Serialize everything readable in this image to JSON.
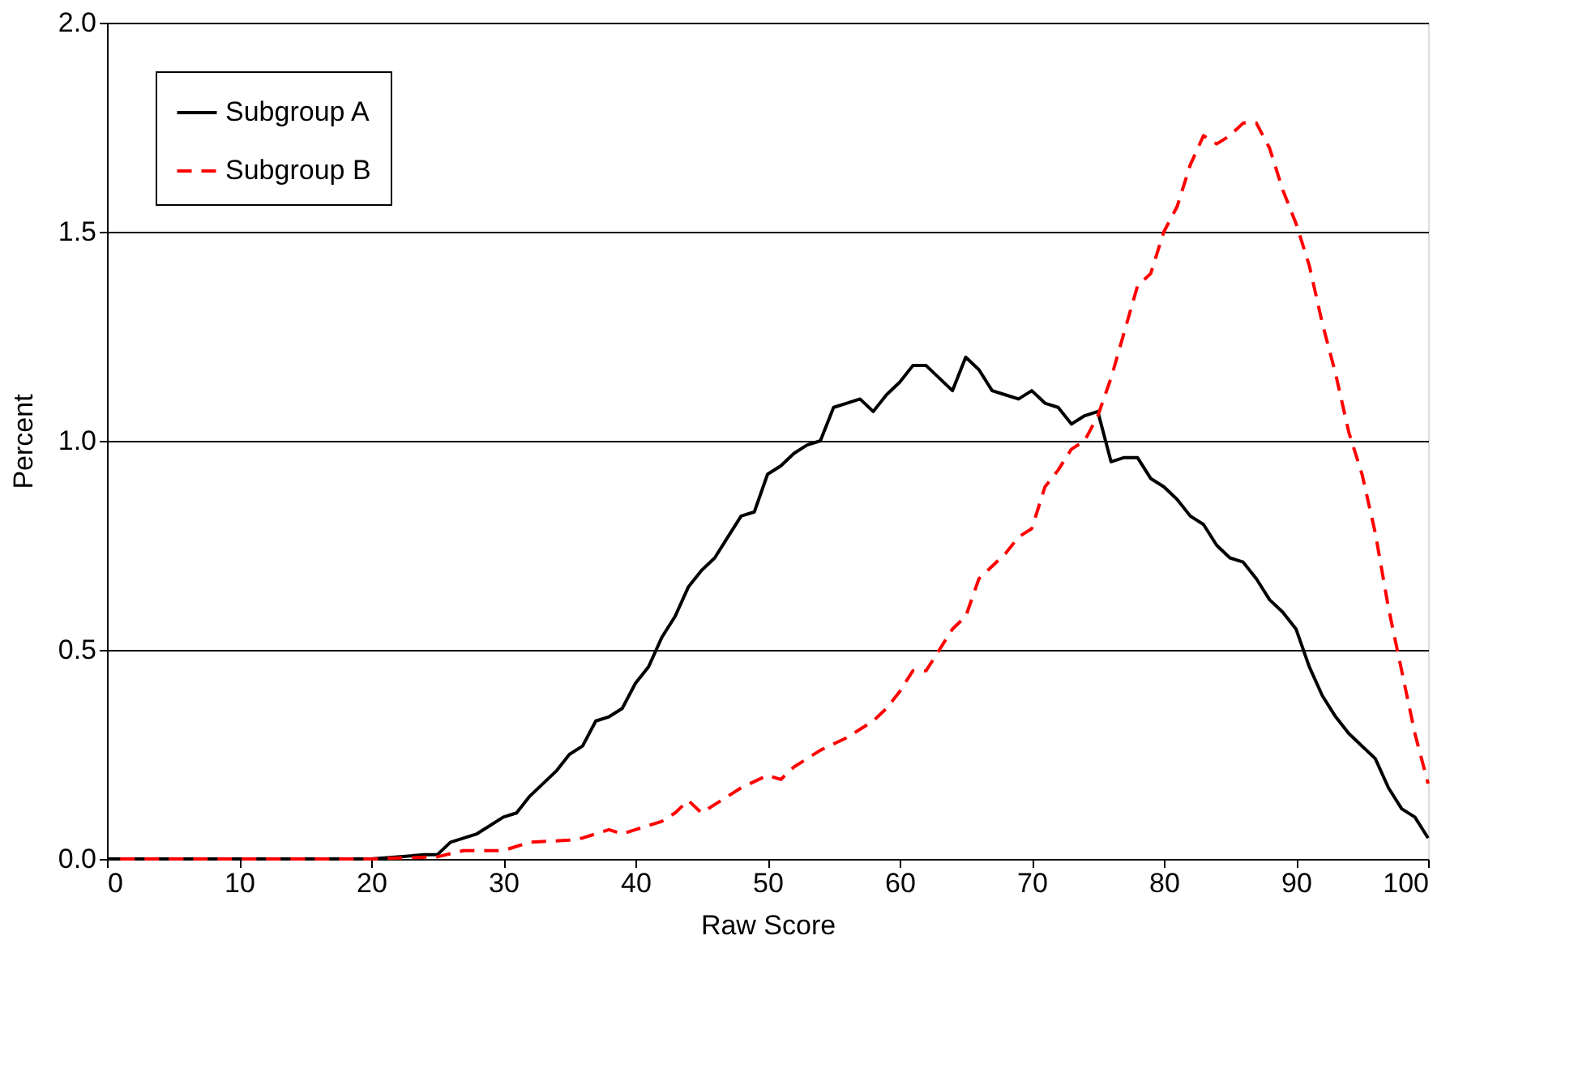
{
  "chart_data": {
    "type": "line",
    "xlabel": "Raw Score",
    "ylabel": "Percent",
    "xlim": [
      0,
      100
    ],
    "xticks": [
      0,
      10,
      20,
      30,
      40,
      50,
      60,
      70,
      80,
      90,
      100
    ],
    "ylim": [
      0,
      2.0
    ],
    "yticks": [
      {
        "value": 0,
        "label": "0.0"
      },
      {
        "value": 0.5,
        "label": "0.5"
      },
      {
        "value": 1,
        "label": "1.0"
      },
      {
        "value": 1.5,
        "label": "1.5"
      },
      {
        "value": 2,
        "label": "2.0"
      }
    ],
    "grid": "y",
    "legend": "top left",
    "series": [
      {
        "name": "Subgroup A",
        "color": "#000000",
        "line_style": "solid",
        "x": [
          0,
          5,
          10,
          15,
          20,
          22,
          24,
          25,
          26,
          28,
          30,
          31,
          32,
          34,
          35,
          36,
          37,
          38,
          39,
          40,
          41,
          42,
          43,
          44,
          45,
          46,
          47,
          48,
          49,
          50,
          51,
          52,
          53,
          54,
          55,
          56,
          57,
          58,
          59,
          60,
          61,
          62,
          63,
          64,
          65,
          66,
          67,
          68,
          69,
          70,
          71,
          72,
          73,
          74,
          75,
          76,
          77,
          78,
          79,
          80,
          81,
          82,
          83,
          84,
          85,
          86,
          87,
          88,
          89,
          90,
          91,
          92,
          93,
          94,
          95,
          96,
          97,
          98,
          99,
          100
        ],
        "values": [
          0,
          0,
          0,
          0,
          0,
          0.005,
          0.01,
          0.01,
          0.04,
          0.06,
          0.1,
          0.11,
          0.15,
          0.21,
          0.25,
          0.27,
          0.33,
          0.34,
          0.36,
          0.42,
          0.46,
          0.53,
          0.58,
          0.65,
          0.69,
          0.72,
          0.77,
          0.82,
          0.83,
          0.92,
          0.94,
          0.97,
          0.99,
          1.0,
          1.08,
          1.09,
          1.1,
          1.07,
          1.11,
          1.14,
          1.18,
          1.18,
          1.15,
          1.12,
          1.2,
          1.17,
          1.12,
          1.11,
          1.1,
          1.12,
          1.09,
          1.08,
          1.04,
          1.06,
          1.07,
          0.95,
          0.96,
          0.96,
          0.91,
          0.89,
          0.86,
          0.82,
          0.8,
          0.75,
          0.72,
          0.71,
          0.67,
          0.62,
          0.59,
          0.55,
          0.46,
          0.39,
          0.34,
          0.3,
          0.27,
          0.24,
          0.17,
          0.12,
          0.1,
          0.05
        ]
      },
      {
        "name": "Subgroup B",
        "color": "#ff0000",
        "line_style": "dashed",
        "x": [
          1,
          5,
          10,
          15,
          20,
          25,
          27,
          28,
          30,
          31,
          32,
          35,
          36,
          38,
          39,
          40,
          42,
          43,
          44,
          45,
          46,
          48,
          50,
          51,
          52,
          54,
          56,
          57,
          58,
          59,
          60,
          61,
          62,
          63,
          64,
          65,
          66,
          67,
          68,
          69,
          70,
          71,
          72,
          73,
          74,
          75,
          76,
          77,
          78,
          79,
          80,
          81,
          82,
          83,
          84,
          85,
          86,
          87,
          88,
          89,
          90,
          91,
          92,
          93,
          94,
          95,
          96,
          97,
          98,
          99,
          100
        ],
        "values": [
          0,
          0,
          0,
          0,
          0,
          0.005,
          0.02,
          0.02,
          0.02,
          0.03,
          0.04,
          0.045,
          0.05,
          0.07,
          0.06,
          0.07,
          0.09,
          0.11,
          0.14,
          0.11,
          0.13,
          0.17,
          0.2,
          0.19,
          0.22,
          0.26,
          0.29,
          0.31,
          0.33,
          0.36,
          0.4,
          0.45,
          0.45,
          0.5,
          0.55,
          0.58,
          0.67,
          0.7,
          0.73,
          0.77,
          0.79,
          0.89,
          0.93,
          0.98,
          1.0,
          1.06,
          1.15,
          1.26,
          1.37,
          1.4,
          1.5,
          1.56,
          1.66,
          1.73,
          1.71,
          1.73,
          1.76,
          1.76,
          1.7,
          1.6,
          1.52,
          1.42,
          1.28,
          1.16,
          1.02,
          0.92,
          0.78,
          0.6,
          0.45,
          0.3,
          0.18
        ]
      }
    ]
  }
}
